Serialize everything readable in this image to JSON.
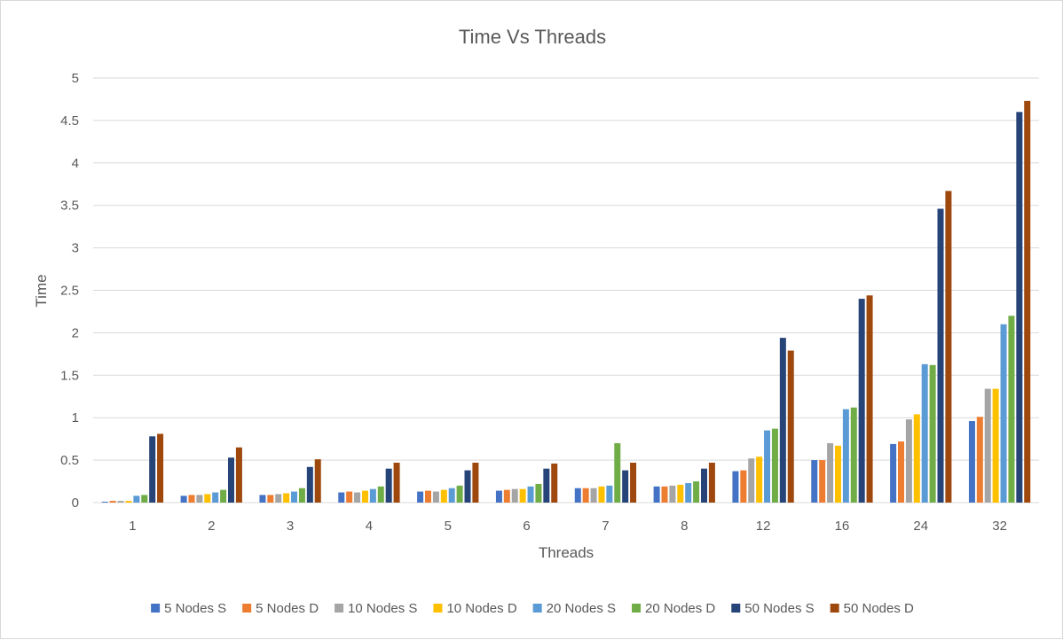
{
  "chart_data": {
    "type": "bar",
    "title": "Time Vs Threads",
    "xlabel": "Threads",
    "ylabel": "Time",
    "ylim": [
      0,
      5
    ],
    "yticks": [
      "0",
      "0.5",
      "1",
      "1.5",
      "2",
      "2.5",
      "3",
      "3.5",
      "4",
      "4.5",
      "5"
    ],
    "yticks_values": [
      0,
      0.5,
      1,
      1.5,
      2,
      2.5,
      3,
      3.5,
      4,
      4.5,
      5
    ],
    "grid": true,
    "legend_position": "bottom",
    "categories": [
      "1",
      "2",
      "3",
      "4",
      "5",
      "6",
      "7",
      "8",
      "12",
      "16",
      "24",
      "32"
    ],
    "series": [
      {
        "name": "5 Nodes S",
        "color": "#4472C4",
        "values": [
          0.01,
          0.08,
          0.09,
          0.12,
          0.13,
          0.14,
          0.17,
          0.19,
          0.37,
          0.5,
          0.69,
          0.96
        ]
      },
      {
        "name": "5 Nodes D",
        "color": "#ED7D31",
        "values": [
          0.02,
          0.09,
          0.09,
          0.13,
          0.14,
          0.15,
          0.17,
          0.19,
          0.38,
          0.5,
          0.72,
          1.01
        ]
      },
      {
        "name": "10 Nodes S",
        "color": "#A5A5A5",
        "values": [
          0.02,
          0.09,
          0.1,
          0.12,
          0.13,
          0.16,
          0.17,
          0.2,
          0.52,
          0.7,
          0.98,
          1.34
        ]
      },
      {
        "name": "10 Nodes D",
        "color": "#FFC000",
        "values": [
          0.02,
          0.1,
          0.11,
          0.14,
          0.15,
          0.16,
          0.19,
          0.21,
          0.54,
          0.67,
          1.04,
          1.34
        ]
      },
      {
        "name": "20 Nodes S",
        "color": "#5B9BD5",
        "values": [
          0.08,
          0.12,
          0.13,
          0.16,
          0.17,
          0.19,
          0.2,
          0.23,
          0.85,
          1.1,
          1.63,
          2.1
        ]
      },
      {
        "name": "20 Nodes D",
        "color": "#70AD47",
        "values": [
          0.09,
          0.15,
          0.17,
          0.19,
          0.2,
          0.22,
          0.7,
          0.25,
          0.87,
          1.12,
          1.62,
          2.2
        ]
      },
      {
        "name": "50 Nodes S",
        "color": "#264478",
        "values": [
          0.78,
          0.53,
          0.42,
          0.4,
          0.38,
          0.4,
          0.38,
          0.4,
          1.94,
          2.4,
          3.46,
          4.6
        ]
      },
      {
        "name": "50 Nodes D",
        "color": "#9E480E",
        "values": [
          0.81,
          0.65,
          0.51,
          0.47,
          0.47,
          0.46,
          0.47,
          0.47,
          1.79,
          2.44,
          3.67,
          4.73
        ]
      }
    ]
  }
}
